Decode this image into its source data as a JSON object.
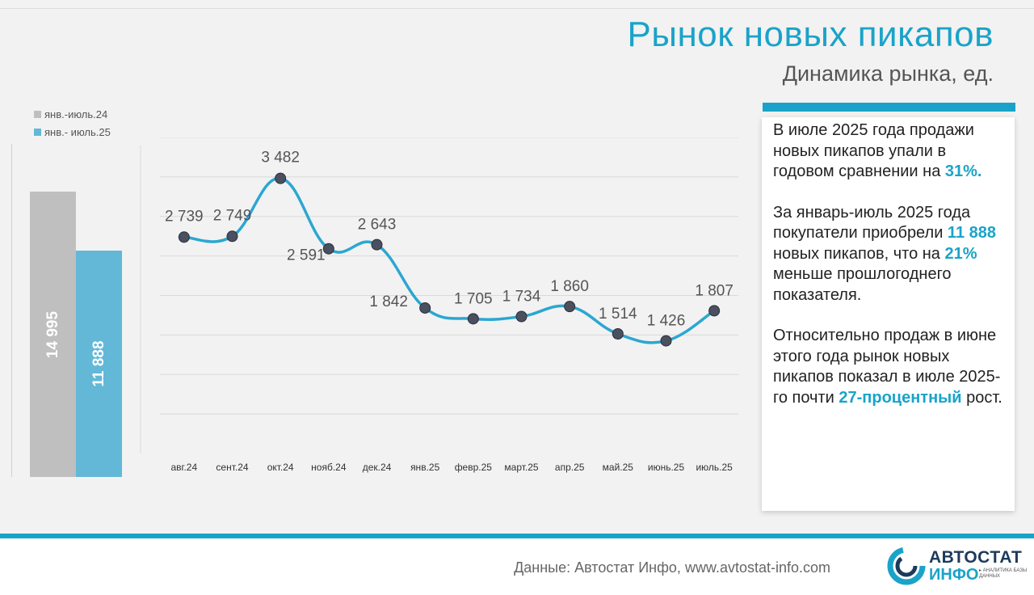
{
  "header": {
    "title": "Рынок новых пикапов",
    "subtitle": "Динамика рынка, ед."
  },
  "colors": {
    "accent": "#1aa3c9",
    "bar_prev": "#bfbfbf",
    "bar_curr": "#63b8d8",
    "line": "#2ba7d1",
    "marker": "#4a5060"
  },
  "legend": {
    "prev_label": "янв.-июль.24",
    "curr_label": "янв.- июль.25"
  },
  "ytd_bars": {
    "prev_value": 14995,
    "prev_label": "14 995",
    "curr_value": 11888,
    "curr_label": "11 888"
  },
  "chart_data": [
    {
      "type": "bar",
      "categories": [
        "янв.-июль.24",
        "янв.- июль.25"
      ],
      "values": [
        14995,
        11888
      ],
      "data_labels": [
        "14 995",
        "11 888"
      ],
      "ylim": [
        0,
        17500
      ],
      "grid": false
    },
    {
      "type": "line",
      "categories": [
        "авг.24",
        "сент.24",
        "окт.24",
        "нояб.24",
        "дек.24",
        "янв.25",
        "февр.25",
        "март.25",
        "апр.25",
        "май.25",
        "июнь.25",
        "июль.25"
      ],
      "values": [
        2739,
        2749,
        3482,
        2591,
        2643,
        1842,
        1705,
        1734,
        1860,
        1514,
        1426,
        1807
      ],
      "data_labels": [
        "2 739",
        "2 749",
        "3 482",
        "2 591",
        "2 643",
        "1 842",
        "1 705",
        "1 734",
        "1 860",
        "1 514",
        "1 426",
        "1 807"
      ],
      "ylim": [
        0,
        4000
      ],
      "grid": true
    }
  ],
  "info": {
    "p1_text": "В июле 2025 года продажи новых пикапов упали в годовом сравнении на ",
    "p1_hl": "31%.",
    "p2_a": "За январь-июль 2025 года покупатели приобрели ",
    "p2_hl1": "11 888",
    "p2_b": " новых пикапов, что на ",
    "p2_hl2": "21%",
    "p2_c": " меньше прошлогоднего показателя.",
    "p3_a": "Относительно продаж в июне этого года рынок новых пикапов показал в июле 2025-го почти ",
    "p3_hl": "27-процентный",
    "p3_b": " рост."
  },
  "footer": {
    "source": "Данные: Автостат Инфо, www.avtostat-info.com",
    "logo_word1": "АВТОСТАТ",
    "logo_word2": "ИНФО",
    "logo_tagline": "▸ АНАЛИТИКА БАЗЫ ДАННЫХ"
  }
}
